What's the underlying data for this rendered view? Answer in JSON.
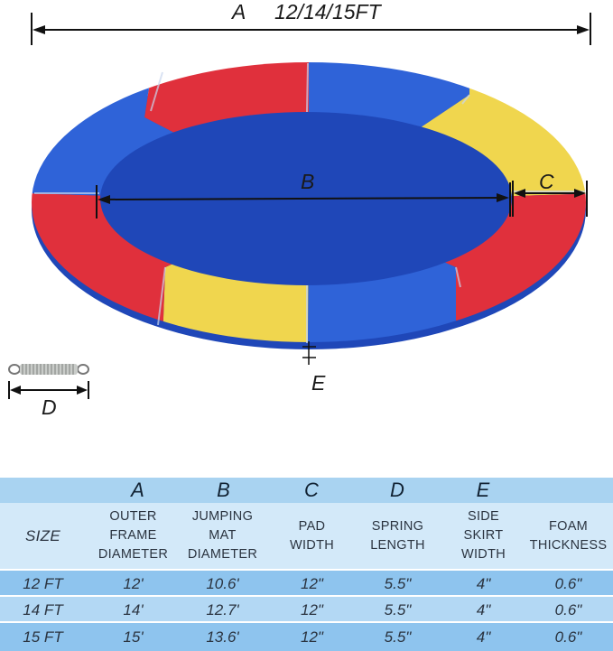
{
  "diagram": {
    "label_a": "A",
    "label_a_sizes": "12/14/15FT",
    "label_b": "B",
    "label_c": "C",
    "label_d": "D",
    "label_e": "E",
    "colors": {
      "red": "#e0303c",
      "blue": "#2f63d8",
      "yellow": "#f0d64e",
      "edge": "#1f47b8"
    }
  },
  "table": {
    "letters": [
      "A",
      "B",
      "C",
      "D",
      "E"
    ],
    "headers": {
      "size": "SIZE",
      "outer_frame_diameter": [
        "OUTER",
        "FRAME",
        "DIAMETER"
      ],
      "jumping_mat_diameter": [
        "JUMPING",
        "MAT",
        "DIAMETER"
      ],
      "pad_width": [
        "PAD",
        "WIDTH"
      ],
      "spring_length": [
        "SPRING",
        "LENGTH"
      ],
      "side_skirt_width": [
        "SIDE",
        "SKIRT",
        "WIDTH"
      ],
      "foam_thickness": [
        "FOAM",
        "THICKNESS"
      ]
    },
    "rows": [
      [
        "12 FT",
        "12'",
        "10.6'",
        "12\"",
        "5.5\"",
        "4\"",
        "0.6\""
      ],
      [
        "14 FT",
        "14'",
        "12.7'",
        "12\"",
        "5.5\"",
        "4\"",
        "0.6\""
      ],
      [
        "15 FT",
        "15'",
        "13.6'",
        "12\"",
        "5.5\"",
        "4\"",
        "0.6\""
      ]
    ],
    "colors": {
      "letters_bg": "#a9d3f1",
      "header_bg": "#d3e9f9",
      "row_dark": "#8ec4ee",
      "row_light": "#b3d8f4"
    }
  }
}
